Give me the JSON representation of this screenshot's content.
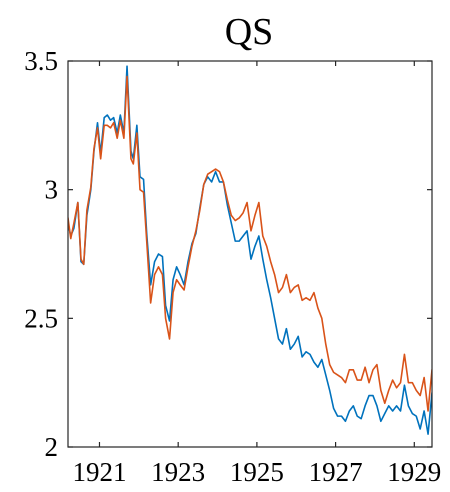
{
  "chart_data": {
    "type": "line",
    "title": "QS",
    "xlabel": "",
    "ylabel": "",
    "xlim": [
      1920.2,
      1929.45
    ],
    "ylim": [
      2.0,
      3.5
    ],
    "xticks": [
      1921,
      1923,
      1925,
      1927,
      1929
    ],
    "xtick_labels": [
      "1921",
      "1923",
      "1925",
      "1927",
      "1929"
    ],
    "yticks": [
      2.0,
      2.5,
      3.0,
      3.5
    ],
    "ytick_labels": [
      "2",
      "2.5",
      "3",
      "3.5"
    ],
    "grid": false,
    "legend": "none",
    "series": [
      {
        "color": "#0072BD",
        "x": [
          1920.2,
          1920.27,
          1920.35,
          1920.45,
          1920.53,
          1920.6,
          1920.68,
          1920.78,
          1920.86,
          1920.95,
          1921.03,
          1921.12,
          1921.2,
          1921.28,
          1921.36,
          1921.45,
          1921.53,
          1921.62,
          1921.7,
          1921.8,
          1921.86,
          1921.95,
          1922.03,
          1922.12,
          1922.2,
          1922.3,
          1922.4,
          1922.5,
          1922.6,
          1922.68,
          1922.78,
          1922.87,
          1922.96,
          1923.05,
          1923.15,
          1923.25,
          1923.35,
          1923.45,
          1923.55,
          1923.65,
          1923.75,
          1923.85,
          1923.95,
          1924.05,
          1924.15,
          1924.25,
          1924.35,
          1924.45,
          1924.55,
          1924.65,
          1924.75,
          1924.85,
          1924.95,
          1925.05,
          1925.15,
          1925.25,
          1925.35,
          1925.45,
          1925.55,
          1925.65,
          1925.75,
          1925.85,
          1925.95,
          1926.05,
          1926.15,
          1926.25,
          1926.35,
          1926.45,
          1926.55,
          1926.65,
          1926.75,
          1926.85,
          1926.95,
          1927.05,
          1927.15,
          1927.25,
          1927.35,
          1927.45,
          1927.55,
          1927.65,
          1927.75,
          1927.85,
          1927.95,
          1928.05,
          1928.15,
          1928.25,
          1928.35,
          1928.45,
          1928.55,
          1928.65,
          1928.75,
          1928.85,
          1928.95,
          1929.05,
          1929.15,
          1929.25,
          1929.35,
          1929.45
        ],
        "y": [
          2.87,
          2.82,
          2.85,
          2.95,
          2.72,
          2.71,
          2.9,
          3.0,
          3.15,
          3.26,
          3.14,
          3.28,
          3.29,
          3.27,
          3.28,
          3.22,
          3.29,
          3.22,
          3.48,
          3.15,
          3.12,
          3.25,
          3.05,
          3.04,
          2.83,
          2.63,
          2.72,
          2.75,
          2.74,
          2.55,
          2.49,
          2.65,
          2.7,
          2.67,
          2.63,
          2.72,
          2.79,
          2.83,
          2.93,
          3.02,
          3.05,
          3.03,
          3.07,
          3.03,
          3.03,
          2.94,
          2.87,
          2.8,
          2.8,
          2.82,
          2.84,
          2.73,
          2.78,
          2.82,
          2.73,
          2.65,
          2.58,
          2.5,
          2.42,
          2.4,
          2.46,
          2.38,
          2.4,
          2.43,
          2.35,
          2.37,
          2.36,
          2.33,
          2.31,
          2.34,
          2.28,
          2.22,
          2.15,
          2.12,
          2.12,
          2.1,
          2.14,
          2.16,
          2.12,
          2.11,
          2.16,
          2.2,
          2.2,
          2.16,
          2.1,
          2.13,
          2.16,
          2.14,
          2.16,
          2.14,
          2.24,
          2.16,
          2.13,
          2.12,
          2.07,
          2.14,
          2.05,
          2.21
        ]
      },
      {
        "color": "#D95319",
        "x": [
          1920.2,
          1920.27,
          1920.35,
          1920.45,
          1920.53,
          1920.6,
          1920.68,
          1920.78,
          1920.86,
          1920.95,
          1921.03,
          1921.12,
          1921.2,
          1921.28,
          1921.36,
          1921.45,
          1921.53,
          1921.62,
          1921.7,
          1921.8,
          1921.86,
          1921.95,
          1922.03,
          1922.12,
          1922.2,
          1922.3,
          1922.4,
          1922.5,
          1922.6,
          1922.68,
          1922.78,
          1922.87,
          1922.96,
          1923.05,
          1923.15,
          1923.25,
          1923.35,
          1923.45,
          1923.55,
          1923.65,
          1923.75,
          1923.85,
          1923.95,
          1924.05,
          1924.15,
          1924.25,
          1924.35,
          1924.45,
          1924.55,
          1924.65,
          1924.75,
          1924.85,
          1924.95,
          1925.05,
          1925.15,
          1925.25,
          1925.35,
          1925.45,
          1925.55,
          1925.65,
          1925.75,
          1925.85,
          1925.95,
          1926.05,
          1926.15,
          1926.25,
          1926.35,
          1926.45,
          1926.55,
          1926.65,
          1926.75,
          1926.85,
          1926.95,
          1927.05,
          1927.15,
          1927.25,
          1927.35,
          1927.45,
          1927.55,
          1927.65,
          1927.75,
          1927.85,
          1927.95,
          1928.05,
          1928.15,
          1928.25,
          1928.35,
          1928.45,
          1928.55,
          1928.65,
          1928.75,
          1928.85,
          1928.95,
          1929.05,
          1929.15,
          1929.25,
          1929.35,
          1929.45
        ],
        "y": [
          2.89,
          2.81,
          2.87,
          2.95,
          2.73,
          2.71,
          2.92,
          3.01,
          3.16,
          3.24,
          3.12,
          3.25,
          3.25,
          3.24,
          3.26,
          3.2,
          3.27,
          3.2,
          3.44,
          3.12,
          3.1,
          3.22,
          3.0,
          2.99,
          2.8,
          2.56,
          2.67,
          2.7,
          2.67,
          2.5,
          2.42,
          2.6,
          2.65,
          2.63,
          2.61,
          2.7,
          2.78,
          2.84,
          2.92,
          3.02,
          3.06,
          3.07,
          3.08,
          3.07,
          3.03,
          2.96,
          2.9,
          2.88,
          2.89,
          2.91,
          2.95,
          2.84,
          2.9,
          2.95,
          2.82,
          2.78,
          2.72,
          2.67,
          2.6,
          2.62,
          2.67,
          2.6,
          2.62,
          2.63,
          2.57,
          2.58,
          2.57,
          2.6,
          2.54,
          2.5,
          2.4,
          2.32,
          2.29,
          2.28,
          2.27,
          2.25,
          2.3,
          2.3,
          2.26,
          2.26,
          2.31,
          2.25,
          2.3,
          2.32,
          2.22,
          2.17,
          2.22,
          2.26,
          2.23,
          2.25,
          2.36,
          2.25,
          2.25,
          2.22,
          2.2,
          2.27,
          2.14,
          2.3
        ]
      }
    ]
  }
}
